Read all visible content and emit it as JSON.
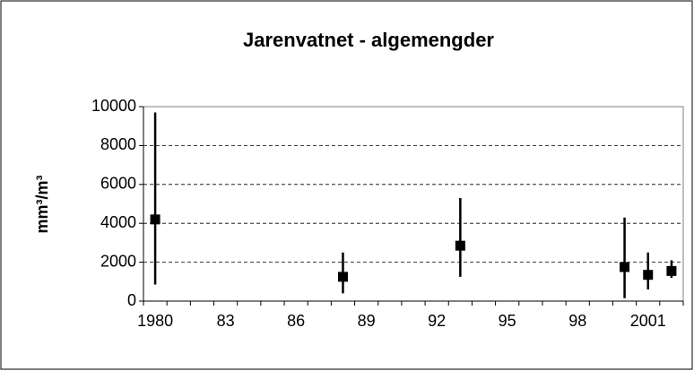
{
  "chart_data": {
    "type": "range",
    "title": "Jarenvatnet - algemengder",
    "y_label": "mm³/m³",
    "categories": [
      "1980",
      null,
      null,
      "83",
      null,
      null,
      "86",
      null,
      null,
      "89",
      null,
      null,
      "92",
      null,
      null,
      "95",
      null,
      null,
      "98",
      null,
      null,
      "2001",
      null
    ],
    "values": [
      4200,
      null,
      null,
      null,
      null,
      null,
      null,
      null,
      1250,
      null,
      null,
      null,
      null,
      2850,
      null,
      null,
      null,
      null,
      null,
      null,
      1750,
      1350,
      1550
    ],
    "low": [
      850,
      null,
      null,
      null,
      null,
      null,
      null,
      null,
      400,
      null,
      null,
      null,
      null,
      1250,
      null,
      null,
      null,
      null,
      null,
      null,
      150,
      600,
      1200
    ],
    "high": [
      9700,
      null,
      null,
      null,
      null,
      null,
      null,
      null,
      2500,
      null,
      null,
      null,
      null,
      5300,
      null,
      null,
      null,
      null,
      null,
      null,
      4300,
      2500,
      2100
    ],
    "color": "#000000",
    "ylim": [
      0,
      10000
    ],
    "yticks": [
      0,
      2000,
      4000,
      6000,
      8000,
      10000
    ],
    "grid": true
  }
}
